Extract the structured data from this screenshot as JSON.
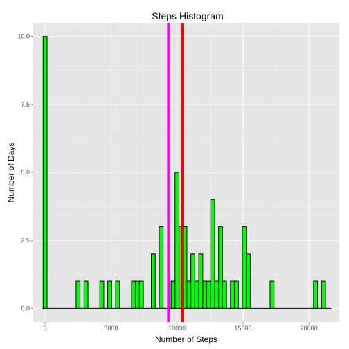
{
  "chart_data": {
    "type": "bar",
    "title": "Steps Histogram",
    "xlabel": "Number of Steps",
    "ylabel": "Number of Days",
    "xlim": [
      -900,
      22300
    ],
    "ylim": [
      -0.5,
      10.5
    ],
    "x_ticks": [
      0,
      5000,
      10000,
      15000,
      20000
    ],
    "x_tick_labels": [
      "0",
      "5000",
      "10000",
      "15000",
      "20000"
    ],
    "y_ticks": [
      0,
      2.5,
      5,
      7.5,
      10
    ],
    "y_tick_labels": [
      "0.0",
      "2.5",
      "5.0",
      "7.5",
      "10.0"
    ],
    "bin_width": 300,
    "bins": [
      {
        "x": 0,
        "count": 10
      },
      {
        "x": 2500,
        "count": 1
      },
      {
        "x": 3100,
        "count": 1
      },
      {
        "x": 4300,
        "count": 1
      },
      {
        "x": 4900,
        "count": 1
      },
      {
        "x": 5500,
        "count": 1
      },
      {
        "x": 6700,
        "count": 1
      },
      {
        "x": 7000,
        "count": 1
      },
      {
        "x": 7300,
        "count": 1
      },
      {
        "x": 8200,
        "count": 2
      },
      {
        "x": 8800,
        "count": 3
      },
      {
        "x": 9700,
        "count": 1
      },
      {
        "x": 10000,
        "count": 5
      },
      {
        "x": 10300,
        "count": 3
      },
      {
        "x": 10600,
        "count": 3
      },
      {
        "x": 10900,
        "count": 1
      },
      {
        "x": 11200,
        "count": 2
      },
      {
        "x": 11500,
        "count": 1
      },
      {
        "x": 11800,
        "count": 2
      },
      {
        "x": 12100,
        "count": 1
      },
      {
        "x": 12400,
        "count": 1
      },
      {
        "x": 12700,
        "count": 4
      },
      {
        "x": 13000,
        "count": 1
      },
      {
        "x": 13300,
        "count": 3
      },
      {
        "x": 13600,
        "count": 1
      },
      {
        "x": 14200,
        "count": 1
      },
      {
        "x": 14500,
        "count": 1
      },
      {
        "x": 15100,
        "count": 3
      },
      {
        "x": 15400,
        "count": 2
      },
      {
        "x": 17200,
        "count": 1
      },
      {
        "x": 20500,
        "count": 1
      },
      {
        "x": 21100,
        "count": 1
      }
    ],
    "baseline_range": [
      -200,
      21700
    ],
    "vlines": [
      {
        "x": 9354,
        "color": "#ff00ff"
      },
      {
        "x": 10395,
        "color": "#ff0000"
      }
    ],
    "bar_fill": "#00ff00",
    "bar_stroke": "#000000",
    "panel_background": "#e5e5e5",
    "grid_color": "#ffffff",
    "grid": true
  }
}
